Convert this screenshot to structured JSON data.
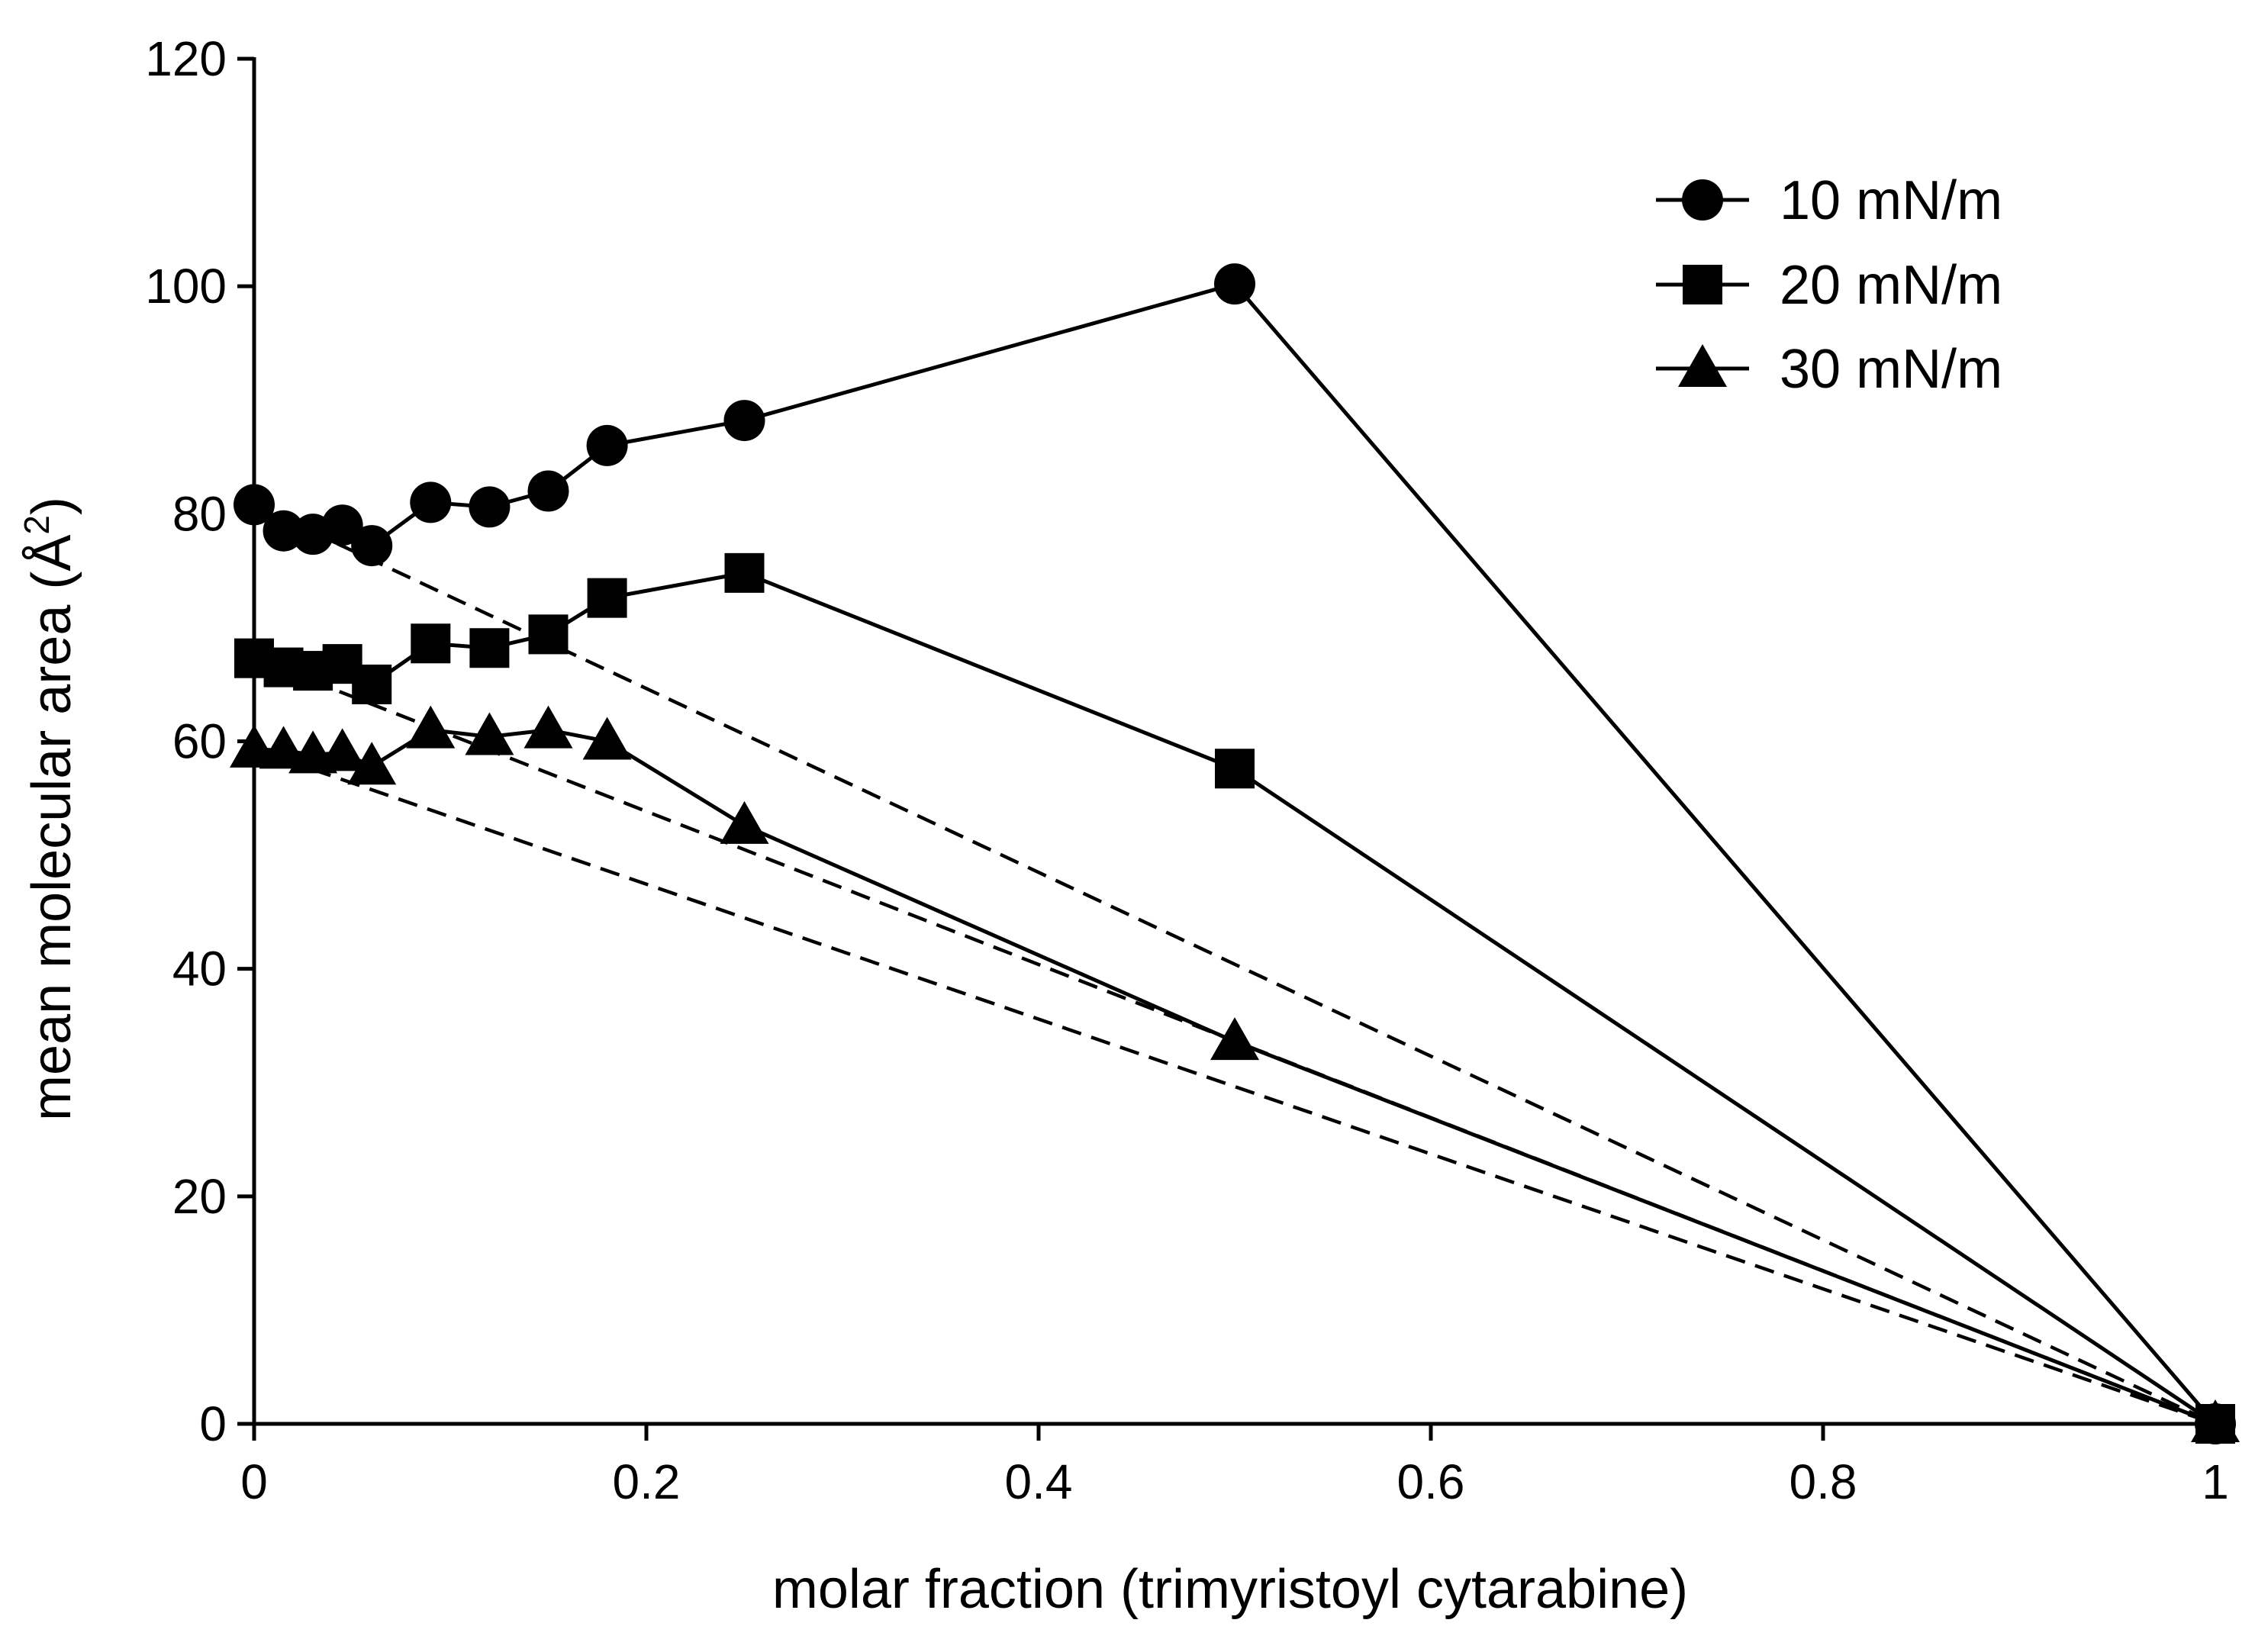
{
  "chart_data": {
    "type": "line",
    "title": "",
    "xlabel": "molar fraction (trimyristoyl cytarabine)",
    "ylabel_text": "mean molecular area (Å",
    "ylabel_sup": "2",
    "ylabel_close": ")",
    "xlim": [
      0,
      1
    ],
    "ylim": [
      0,
      120
    ],
    "xticks": [
      0,
      0.2,
      0.4,
      0.6,
      0.8,
      1
    ],
    "xtick_labels": [
      "0",
      "0.2",
      "0.4",
      "0.6",
      "0.8",
      "1"
    ],
    "yticks": [
      0,
      20,
      40,
      60,
      80,
      100,
      120
    ],
    "ytick_labels": [
      "0",
      "20",
      "40",
      "60",
      "80",
      "100",
      "120"
    ],
    "grid": false,
    "legend_position": "top-right",
    "series": [
      {
        "name": "10 mN/m",
        "marker": "circle",
        "x": [
          0,
          0.015,
          0.03,
          0.045,
          0.06,
          0.09,
          0.12,
          0.15,
          0.18,
          0.25,
          0.5,
          1
        ],
        "y": [
          80.8,
          78.5,
          78.2,
          79.0,
          77.2,
          81.0,
          80.6,
          82.0,
          86.0,
          88.2,
          100.2,
          0
        ]
      },
      {
        "name": "20 mN/m",
        "marker": "square",
        "x": [
          0,
          0.015,
          0.03,
          0.045,
          0.06,
          0.09,
          0.12,
          0.15,
          0.18,
          0.25,
          0.5,
          1
        ],
        "y": [
          67.3,
          66.5,
          66.2,
          66.8,
          65.0,
          68.6,
          68.2,
          69.4,
          72.6,
          74.8,
          57.6,
          0
        ]
      },
      {
        "name": "30 mN/m",
        "marker": "triangle",
        "x": [
          0,
          0.015,
          0.03,
          0.045,
          0.06,
          0.09,
          0.12,
          0.15,
          0.18,
          0.25,
          0.5,
          1
        ],
        "y": [
          59.3,
          59.2,
          58.8,
          59.0,
          57.8,
          61.0,
          60.4,
          61.0,
          60.0,
          52.6,
          33.6,
          0
        ]
      }
    ],
    "ideal_lines": [
      {
        "x": [
          0,
          1
        ],
        "y": [
          80.8,
          0
        ]
      },
      {
        "x": [
          0,
          1
        ],
        "y": [
          67.3,
          0
        ]
      },
      {
        "x": [
          0,
          1
        ],
        "y": [
          59.3,
          0
        ]
      }
    ]
  }
}
